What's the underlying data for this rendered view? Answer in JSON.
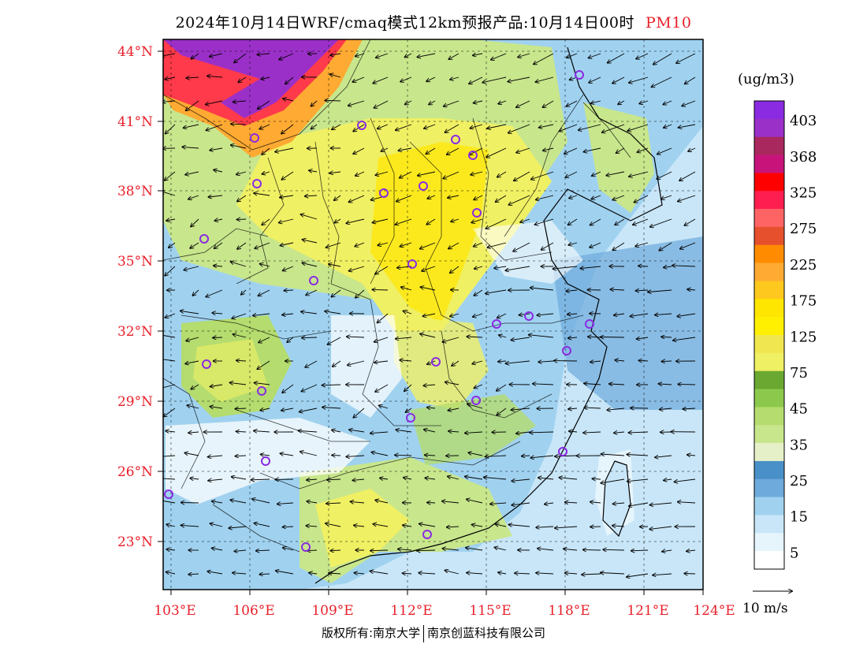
{
  "title": {
    "main": "2024年10月14日WRF/cmaq模式12km预报产品:10月14日00时",
    "pollutant": "PM10",
    "pollutant_color": "#e8202a"
  },
  "latitudes": [
    "44°N",
    "41°N",
    "38°N",
    "35°N",
    "32°N",
    "29°N",
    "26°N",
    "23°N"
  ],
  "longitudes": [
    "103°E",
    "106°E",
    "109°E",
    "112°E",
    "115°E",
    "118°E",
    "121°E",
    "124°E"
  ],
  "colorbar": {
    "unit": "(ug/m3)",
    "labels": [
      "403",
      "368",
      "325",
      "275",
      "225",
      "175",
      "125",
      "75",
      "45",
      "35",
      "25",
      "15",
      "5"
    ],
    "colors": [
      "#8a2be2",
      "#9b30c8",
      "#a9285e",
      "#c8147a",
      "#ff0000",
      "#ff1e50",
      "#ff6464",
      "#e6502d",
      "#ff8c00",
      "#ffaa32",
      "#ffc81e",
      "#ffe600",
      "#fff000",
      "#f0e650",
      "#f0f064",
      "#6aa832",
      "#8cc84b",
      "#b4dc6e",
      "#c8e68c",
      "#e6f0c8",
      "#4a90c8",
      "#6eaadc",
      "#a0d2f0",
      "#c8e6f8",
      "#e6f4fc",
      "#ffffff"
    ]
  },
  "wind_reference": "10 m/s",
  "copyright": {
    "left": "版权所有:南京大学",
    "right": "南京创蓝科技有限公司"
  },
  "map": {
    "land_colors": [
      "#ffffff",
      "#e6f4fc",
      "#a0d2f0",
      "#6eaadc",
      "#c8e68c",
      "#b4dc6e",
      "#f0f064",
      "#ffe600",
      "#ffaa32",
      "#ff1e50",
      "#9b30c8"
    ],
    "city_marker_color": "#8a2be2"
  }
}
